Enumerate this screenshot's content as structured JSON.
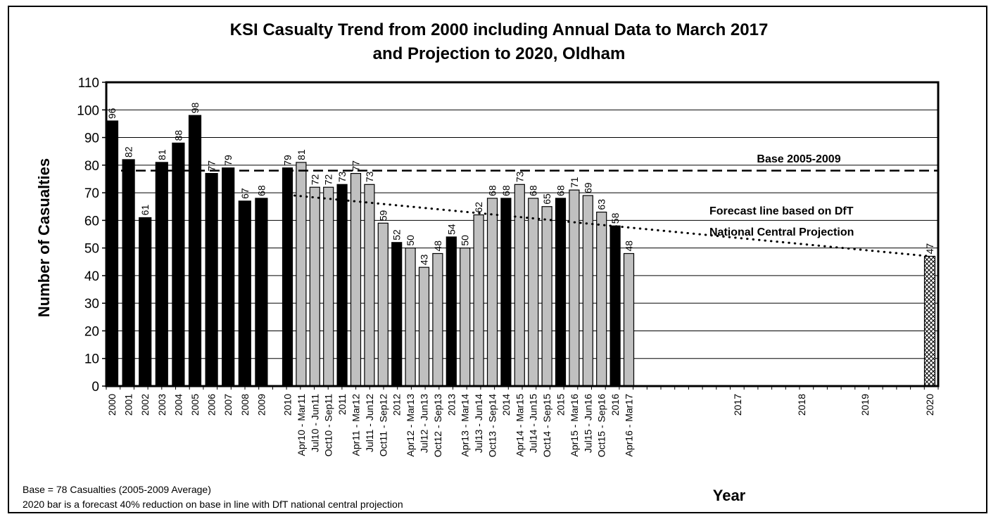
{
  "chart_data": {
    "type": "bar",
    "title": [
      "KSI Casualty Trend from 2000 including Annual Data to March 2017",
      "and Projection to 2020, Oldham"
    ],
    "xlabel": "Year",
    "ylabel": "Number of Casualties",
    "ylim": [
      0,
      110
    ],
    "ytick_step": 10,
    "grid": true,
    "categories": [
      "2000",
      "2001",
      "2002",
      "2003",
      "2004",
      "2005",
      "2006",
      "2007",
      "2008",
      "2009",
      "2010",
      "Apr10 - Mar11",
      "Jul10 - Jun11",
      "Oct10 - Sep11",
      "2011",
      "Apr11 - Mar12",
      "Jul11 - Jun12",
      "Oct11 - Sep12",
      "2012",
      "Apr12 - Mar13",
      "Jul12 - Jun13",
      "Oct12 - Sep13",
      "2013",
      "Apr13 - Mar14",
      "Jul13 - Jun14",
      "Oct13 - Sep14",
      "2014",
      "Apr14 - Mar15",
      "Jul14 - Jun15",
      "Oct14 - Sep15",
      "2015",
      "Apr15 - Mar16",
      "Jul15 - Jun16",
      "Oct15 - Sep16",
      "2016",
      "Apr16 - Mar17",
      "2017",
      "2018",
      "2019",
      "2020"
    ],
    "values": [
      96,
      82,
      61,
      81,
      88,
      98,
      77,
      79,
      67,
      68,
      79,
      81,
      72,
      72,
      73,
      77,
      73,
      59,
      52,
      50,
      43,
      48,
      54,
      50,
      62,
      68,
      68,
      73,
      68,
      65,
      68,
      71,
      69,
      63,
      58,
      48,
      null,
      null,
      null,
      47
    ],
    "bar_kinds": [
      "annual",
      "annual",
      "annual",
      "annual",
      "annual",
      "annual",
      "annual",
      "annual",
      "annual",
      "annual",
      "annual",
      "rolling",
      "rolling",
      "rolling",
      "annual",
      "rolling",
      "rolling",
      "rolling",
      "annual",
      "rolling",
      "rolling",
      "rolling",
      "annual",
      "rolling",
      "rolling",
      "rolling",
      "annual",
      "rolling",
      "rolling",
      "rolling",
      "annual",
      "rolling",
      "rolling",
      "rolling",
      "annual",
      "rolling",
      "empty",
      "empty",
      "empty",
      "forecast"
    ],
    "bar_colors": {
      "annual": "#000000",
      "rolling": "#c0c0c0",
      "forecast": "hatched"
    },
    "base_line": {
      "value": 78,
      "label": "Base 2005-2009"
    },
    "forecast_line": {
      "label": [
        "Forecast line based on DfT",
        "National Central Projection"
      ],
      "start": {
        "x": "2010",
        "y": 69
      },
      "end": {
        "x": "2020",
        "y": 47
      }
    }
  },
  "notes": [
    "Base = 78 Casualties (2005-2009 Average)",
    "2020 bar is a forecast 40% reduction on base in line with DfT national central projection"
  ]
}
